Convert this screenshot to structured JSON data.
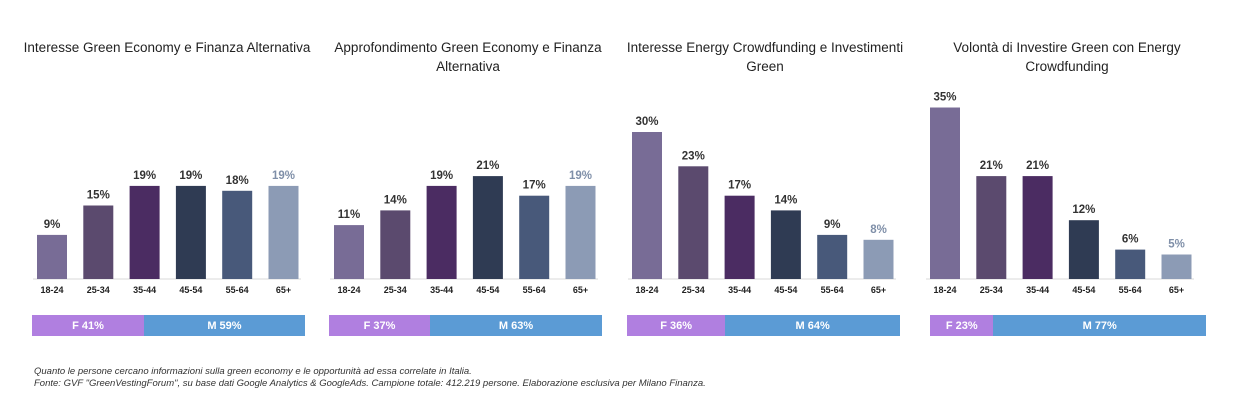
{
  "colors": {
    "18-24": "#786c96",
    "25-34": "#5b4a6e",
    "35-44": "#4b2c62",
    "45-54": "#2f3b53",
    "55-64": "#48597a",
    "65+": "#8c9bb5",
    "label_dark": "#333333",
    "label_light": "#7f8fa8",
    "female": "#b07fe0",
    "male": "#5b9bd5"
  },
  "chart_data": [
    {
      "type": "bar",
      "title": "Interesse Green Economy e Finanza Alternativa",
      "categories": [
        "18-24",
        "25-34",
        "35-44",
        "45-54",
        "55-64",
        "65+"
      ],
      "values": [
        9,
        15,
        19,
        19,
        18,
        19
      ],
      "value_labels": [
        "9%",
        "15%",
        "19%",
        "19%",
        "18%",
        "19%"
      ],
      "gender": {
        "female_label": "F 41%",
        "male_label": "M 59%",
        "female": 41,
        "male": 59
      }
    },
    {
      "type": "bar",
      "title": "Approfondimento Green Economy e Finanza Alternativa",
      "categories": [
        "18-24",
        "25-34",
        "35-44",
        "45-54",
        "55-64",
        "65+"
      ],
      "values": [
        11,
        14,
        19,
        21,
        17,
        19
      ],
      "value_labels": [
        "11%",
        "14%",
        "19%",
        "21%",
        "17%",
        "19%"
      ],
      "gender": {
        "female_label": "F 37%",
        "male_label": "M 63%",
        "female": 37,
        "male": 63
      }
    },
    {
      "type": "bar",
      "title": "Interesse Energy Crowdfunding e Investimenti Green",
      "categories": [
        "18-24",
        "25-34",
        "35-44",
        "45-54",
        "55-64",
        "65+"
      ],
      "values": [
        30,
        23,
        17,
        14,
        9,
        8
      ],
      "value_labels": [
        "30%",
        "23%",
        "17%",
        "14%",
        "9%",
        "8%"
      ],
      "gender": {
        "female_label": "F 36%",
        "male_label": "M 64%",
        "female": 36,
        "male": 64
      }
    },
    {
      "type": "bar",
      "title": "Volontà di Investire Green con Energy Crowdfunding",
      "categories": [
        "18-24",
        "25-34",
        "35-44",
        "45-54",
        "55-64",
        "65+"
      ],
      "values": [
        35,
        21,
        21,
        12,
        6,
        5
      ],
      "value_labels": [
        "35%",
        "21%",
        "21%",
        "12%",
        "6%",
        "5%"
      ],
      "gender": {
        "female_label": "F 23%",
        "male_label": "M 77%",
        "female": 23,
        "male": 77
      }
    }
  ],
  "footnote": {
    "line1": "Quanto le persone cercano informazioni sulla green economy e le opportunità ad essa correlate in Italia.",
    "line2": "Fonte: GVF \"GreenVestingForum\", su base dati Google Analytics & GoogleAds. Campione totale: 412.219 persone. Elaborazione esclusiva per Milano Finanza."
  }
}
